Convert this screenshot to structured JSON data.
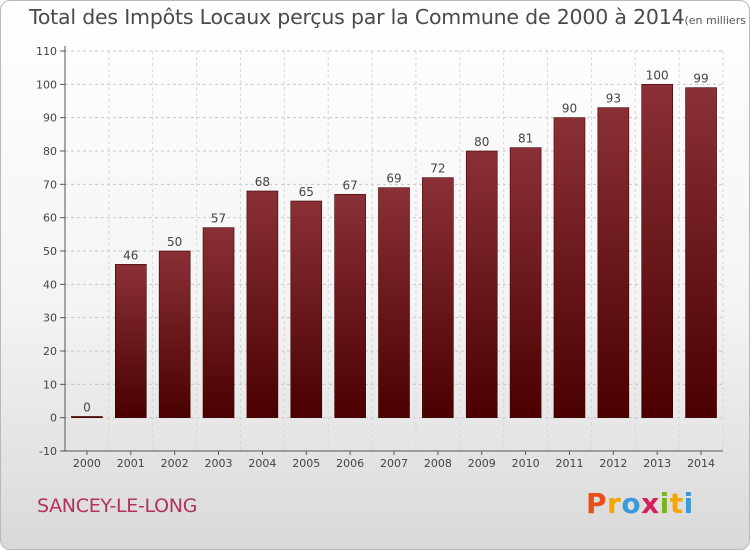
{
  "chart_data": {
    "type": "bar",
    "title": "Total des Impôts Locaux perçus par la Commune de 2000 à 2014",
    "unit_note": "(en milliers d'€)",
    "categories": [
      "2000",
      "2001",
      "2002",
      "2003",
      "2004",
      "2005",
      "2006",
      "2007",
      "2008",
      "2009",
      "2010",
      "2011",
      "2012",
      "2013",
      "2014"
    ],
    "values": [
      0,
      46,
      50,
      57,
      68,
      65,
      67,
      69,
      72,
      80,
      81,
      90,
      93,
      100,
      99
    ],
    "ylim": [
      -10,
      110
    ],
    "yticks": [
      -10,
      0,
      10,
      20,
      30,
      40,
      50,
      60,
      70,
      80,
      90,
      100,
      110
    ],
    "xlabel": "",
    "ylabel": "",
    "grid": true,
    "bar_color": "#7b1e24"
  },
  "footer": {
    "commune": "SANCEY-LE-LONG",
    "brand_letters": [
      "P",
      "r",
      "o",
      "x",
      "i",
      "t",
      "i"
    ],
    "brand_colors": [
      "#e94e1b",
      "#f7a600",
      "#3a9ad9",
      "#d81e5b",
      "#7ab51d",
      "#f7a600",
      "#3a9ad9"
    ]
  }
}
